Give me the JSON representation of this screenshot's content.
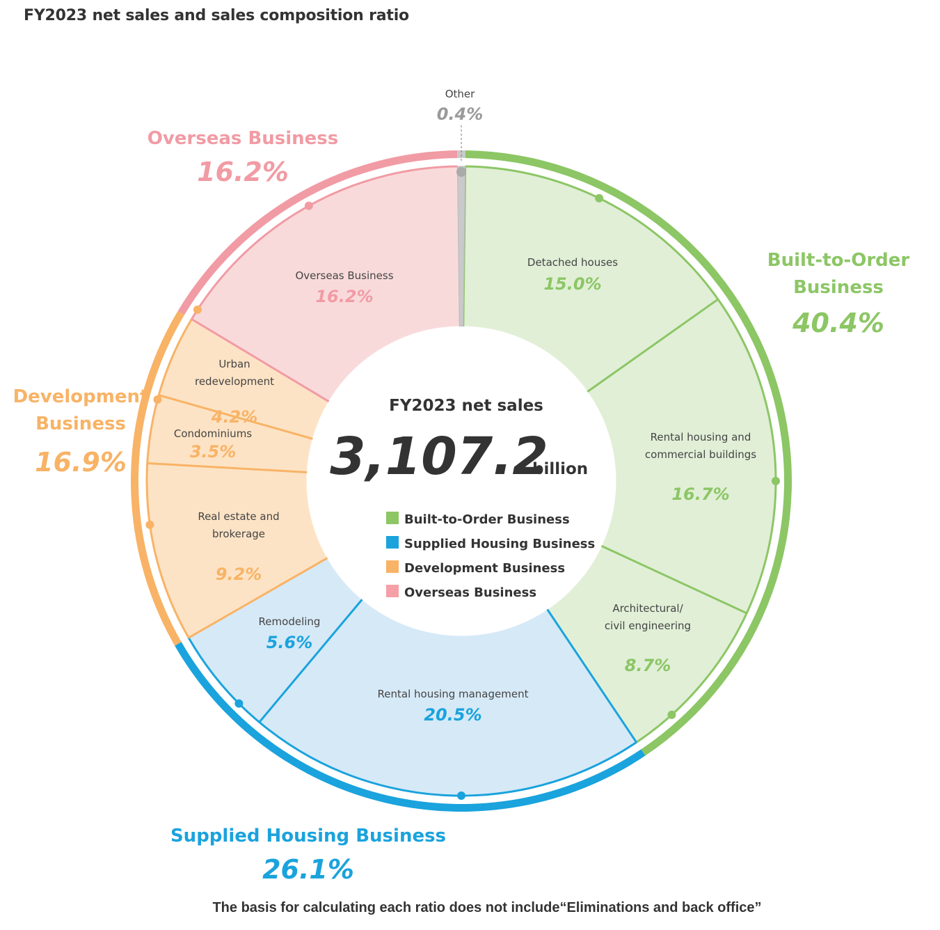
{
  "title": "FY2023 net sales and sales composition ratio",
  "footnote": "The basis for calculating each ratio does not include“Eliminations and back office”",
  "center": {
    "title": "FY2023 net sales",
    "value": "3,107.2",
    "unit": "billion"
  },
  "legend": [
    {
      "label": "Built-to-Order Business",
      "color": "#8cc665"
    },
    {
      "label": "Supplied Housing Business",
      "color": "#1aa3dd"
    },
    {
      "label": "Development Business",
      "color": "#f8b366"
    },
    {
      "label": "Overseas Business",
      "color": "#f4a0a6"
    }
  ],
  "chart_data": {
    "type": "pie",
    "style": "donut",
    "unit": "%",
    "groups": [
      {
        "name": "Built-to-Order Business",
        "label": "Built-to-Order\nBusiness",
        "value_text": "40.4%",
        "value": 40.4,
        "color": "#8cc665"
      },
      {
        "name": "Supplied Housing Business",
        "label": "Supplied Housing Business",
        "value_text": "26.1%",
        "value": 26.1,
        "color": "#1aa3dd"
      },
      {
        "name": "Development Business",
        "label": "Development\nBusiness",
        "value_text": "16.9%",
        "value": 16.9,
        "color": "#f8b366"
      },
      {
        "name": "Overseas Business",
        "label": "Overseas Business",
        "value_text": "16.2%",
        "value": 16.2,
        "color": "#f19ba4"
      },
      {
        "name": "Other",
        "label": "Other",
        "value_text": "0.4%",
        "value": 0.4,
        "color": "#a9a9a9"
      }
    ],
    "segments": [
      {
        "label": "Detached houses",
        "value_text": "15.0%",
        "value": 15.0,
        "group": "Built-to-Order Business"
      },
      {
        "label": "Rental housing and\ncommercial buildings",
        "value_text": "16.7%",
        "value": 16.7,
        "group": "Built-to-Order Business"
      },
      {
        "label": "Architectural/\ncivil engineering",
        "value_text": "8.7%",
        "value": 8.7,
        "group": "Built-to-Order Business"
      },
      {
        "label": "Rental housing management",
        "value_text": "20.5%",
        "value": 20.5,
        "group": "Supplied Housing Business"
      },
      {
        "label": "Remodeling",
        "value_text": "5.6%",
        "value": 5.6,
        "group": "Supplied Housing Business"
      },
      {
        "label": "Real estate and\nbrokerage",
        "value_text": "9.2%",
        "value": 9.2,
        "group": "Development Business"
      },
      {
        "label": "Condominiums",
        "value_text": "3.5%",
        "value": 3.5,
        "group": "Development Business"
      },
      {
        "label": "Urban\nredevelopment",
        "value_text": "4.2%",
        "value": 4.2,
        "group": "Development Business"
      },
      {
        "label": "Overseas Business",
        "value_text": "16.2%",
        "value": 16.2,
        "group": "Overseas Business"
      }
    ]
  }
}
